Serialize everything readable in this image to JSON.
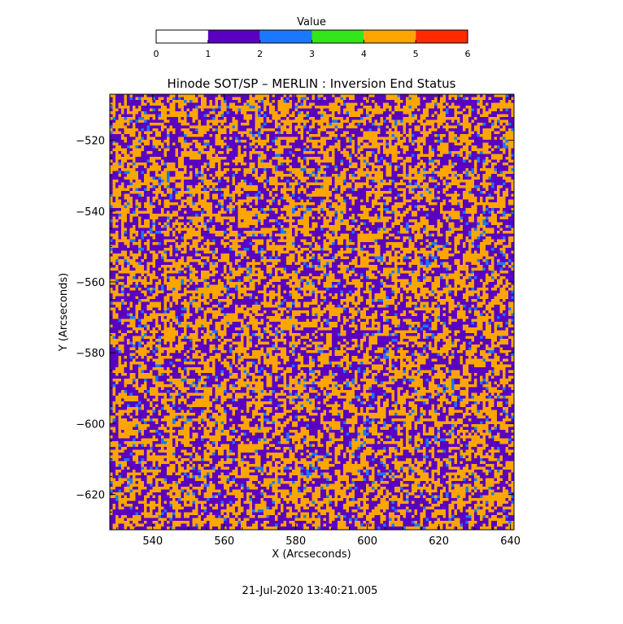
{
  "chart_data": {
    "type": "heatmap",
    "title": "Hinode SOT/SP – MERLIN : Inversion End Status",
    "xlabel": "X (Arcseconds)",
    "ylabel": "Y (Arcseconds)",
    "xlim": [
      528,
      641
    ],
    "ylim": [
      -630,
      -507
    ],
    "x_ticks": [
      540,
      560,
      580,
      600,
      620,
      640
    ],
    "y_ticks": [
      -520,
      -540,
      -560,
      -580,
      -600,
      -620
    ],
    "colorbar": {
      "label": "Value",
      "range": [
        0,
        6
      ],
      "ticks": [
        0,
        1,
        2,
        3,
        4,
        5,
        6
      ],
      "bins": [
        {
          "from": 0,
          "to": 1,
          "color": "#ffffff"
        },
        {
          "from": 1,
          "to": 2,
          "color": "#5a00c0"
        },
        {
          "from": 2,
          "to": 3,
          "color": "#1a78ff"
        },
        {
          "from": 3,
          "to": 4,
          "color": "#33e61a"
        },
        {
          "from": 4,
          "to": 5,
          "color": "#ffa500"
        },
        {
          "from": 5,
          "to": 6,
          "color": "#ff2a00"
        }
      ]
    },
    "value_fractions": {
      "1": 0.58,
      "2": 0.05,
      "4": 0.37
    },
    "grid": false
  },
  "footer": {
    "timestamp": "21-Jul-2020 13:40:21.005"
  }
}
